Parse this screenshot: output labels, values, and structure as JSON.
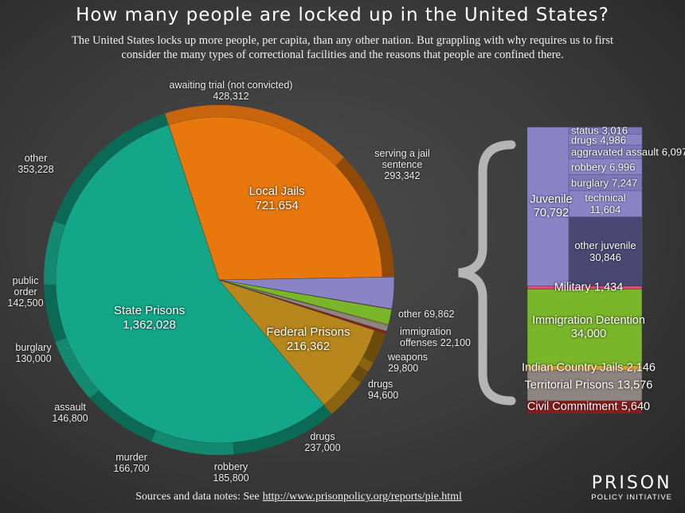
{
  "chart_data": {
    "type": "pie",
    "title": "How many people are locked up in the United States?",
    "subtitle": "The United States locks up more people, per capita, than any other nation.  But grappling with why requires us to first consider the many types of correctional facilities and the reasons that people are confined there.",
    "slices": [
      {
        "name": "Local Jails",
        "value": 721654,
        "value_label": "721,654",
        "color": "#e8780e",
        "parts": [
          {
            "name": "awaiting trial (not convicted)",
            "value": 428312,
            "value_label": "428,312",
            "color": "#c9650c"
          },
          {
            "name": "serving a jail sentence",
            "value": 293342,
            "value_label": "293,342",
            "color": "#8f4a08"
          }
        ]
      },
      {
        "name": "Juvenile",
        "value": 70792,
        "value_label": "70,792",
        "color": "#8a84c6",
        "expanded": true,
        "parts": [
          {
            "name": "status",
            "value": 3016,
            "value_label": "3,016",
            "color": "#7e78b8"
          },
          {
            "name": "drugs",
            "value": 4986,
            "value_label": "4,986",
            "color": "#8a84c6"
          },
          {
            "name": "aggravated assault",
            "value": 6097,
            "value_label": "6,097",
            "color": "#7e78b8"
          },
          {
            "name": "robbery",
            "value": 6996,
            "value_label": "6,996",
            "color": "#8a84c6"
          },
          {
            "name": "burglary",
            "value": 7247,
            "value_label": "7,247",
            "color": "#7e78b8"
          },
          {
            "name": "technical",
            "value": 11604,
            "value_label": "11,604",
            "color": "#8a84c6"
          },
          {
            "name": "other juvenile",
            "value": 30846,
            "value_label": "30,846",
            "color": "#4a4872"
          }
        ]
      },
      {
        "name": "Military",
        "value": 1434,
        "value_label": "1,434",
        "color": "#d64f7c",
        "expanded": true
      },
      {
        "name": "Immigration Detention",
        "value": 34000,
        "value_label": "34,000",
        "color": "#7ab62a",
        "expanded": true
      },
      {
        "name": "Indian Country Jails",
        "value": 2146,
        "value_label": "2,146",
        "color": "#e0a63a",
        "expanded": true
      },
      {
        "name": "Territorial Prisons",
        "value": 13576,
        "value_label": "13,576",
        "color": "#8f8580",
        "expanded": true
      },
      {
        "name": "Civil Commitment",
        "value": 5640,
        "value_label": "5,640",
        "color": "#8b1e1e",
        "expanded": true
      },
      {
        "name": "Federal Prisons",
        "value": 216362,
        "value_label": "216,362",
        "color": "#b7861c",
        "parts": [
          {
            "name": "other",
            "value": 69862,
            "value_label": "69,862",
            "color": "#6b4c0c"
          },
          {
            "name": "immigration offenses",
            "value": 22100,
            "value_label": "22,100",
            "color": "#8a6210"
          },
          {
            "name": "weapons",
            "value": 29800,
            "value_label": "29,800",
            "color": "#6b4c0c"
          },
          {
            "name": "drugs",
            "value": 94600,
            "value_label": "94,600",
            "color": "#8a6210"
          }
        ]
      },
      {
        "name": "State Prisons",
        "value": 1362028,
        "value_label": "1,362,028",
        "color": "#14a688",
        "parts": [
          {
            "name": "drugs",
            "value": 237000,
            "value_label": "237,000",
            "color": "#0b6a55"
          },
          {
            "name": "robbery",
            "value": 185800,
            "value_label": "185,800",
            "color": "#138a70"
          },
          {
            "name": "murder",
            "value": 166700,
            "value_label": "166,700",
            "color": "#0b6a55"
          },
          {
            "name": "assault",
            "value": 146800,
            "value_label": "146,800",
            "color": "#138a70"
          },
          {
            "name": "burglary",
            "value": 130000,
            "value_label": "130,000",
            "color": "#0b6a55"
          },
          {
            "name": "public order",
            "value": 142500,
            "value_label": "142,500",
            "color": "#138a70"
          },
          {
            "name": "other",
            "value": 353228,
            "value_label": "353,228",
            "color": "#0b6a55"
          }
        ]
      }
    ],
    "footer": {
      "text": "Sources and data notes: See",
      "link": "http://www.prisonpolicy.org/reports/pie.html"
    },
    "logo": {
      "name": "PRISON",
      "tagline": "POLICY INITIATIVE"
    }
  }
}
